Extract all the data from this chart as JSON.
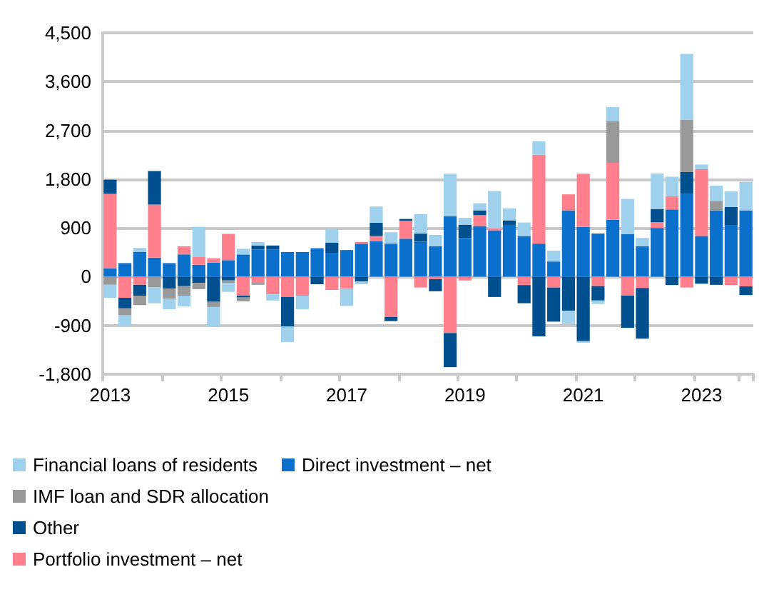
{
  "chart_data": {
    "type": "bar",
    "stacked": true,
    "categories": [
      "2013",
      null,
      null,
      null,
      null,
      null,
      null,
      null,
      "2015",
      null,
      null,
      null,
      null,
      null,
      null,
      null,
      "2017",
      null,
      null,
      null,
      null,
      null,
      null,
      null,
      "2019",
      null,
      null,
      null,
      null,
      null,
      null,
      null,
      "2021",
      null,
      null,
      null,
      null,
      null,
      null,
      null,
      "2023",
      null,
      null,
      null
    ],
    "series": [
      {
        "name": "Direct investment – net",
        "color": "#0a70cc",
        "values": [
          150,
          250,
          460,
          350,
          250,
          410,
          220,
          260,
          305,
          410,
          500,
          505,
          455,
          455,
          525,
          440,
          470,
          610,
          655,
          610,
          700,
          645,
          560,
          1120,
          715,
          935,
          855,
          955,
          750,
          610,
          280,
          1225,
          920,
          795,
          1050,
          785,
          560,
          900,
          1240,
          1530,
          750,
          1225,
          955,
          1225
        ]
      },
      {
        "name": "Portfolio investment – net",
        "color": "#ff808c",
        "values": [
          1380,
          -390,
          -150,
          980,
          null,
          150,
          150,
          80,
          485,
          -350,
          -115,
          -325,
          -375,
          -350,
          null,
          -245,
          -225,
          30,
          95,
          -745,
          330,
          -200,
          -45,
          -1040,
          -70,
          200,
          35,
          null,
          -155,
          1640,
          -200,
          295,
          980,
          -175,
          1050,
          -350,
          -210,
          105,
          245,
          -200,
          1235,
          null,
          -155,
          -180
        ]
      },
      {
        "name": "Other",
        "color": "#00508f",
        "values": [
          260,
          -195,
          -200,
          620,
          -220,
          -175,
          -115,
          -465,
          -70,
          -35,
          75,
          70,
          -545,
          null,
          -140,
          190,
          20,
          -90,
          245,
          -75,
          35,
          150,
          -225,
          -630,
          245,
          90,
          -375,
          85,
          -335,
          -1100,
          -630,
          -630,
          -1190,
          -265,
          null,
          -595,
          -935,
          245,
          -155,
          400,
          -130,
          -150,
          330,
          -160
        ]
      },
      {
        "name": "IMF loan and SDR allocation",
        "color": "#999999",
        "values": [
          -150,
          -130,
          -175,
          -200,
          -190,
          -175,
          -115,
          -95,
          -50,
          -70,
          -35,
          null,
          null,
          null,
          null,
          null,
          null,
          null,
          null,
          null,
          null,
          null,
          null,
          null,
          null,
          null,
          null,
          null,
          null,
          null,
          null,
          null,
          null,
          null,
          765,
          null,
          null,
          null,
          null,
          970,
          null,
          175,
          null,
          null
        ]
      },
      {
        "name": "Financial loans of residents",
        "color": "#9fd0ec",
        "values": [
          -240,
          -195,
          70,
          -290,
          -190,
          -200,
          550,
          -365,
          -160,
          105,
          65,
          -115,
          -285,
          -250,
          null,
          250,
          -315,
          -50,
          300,
          210,
          null,
          360,
          210,
          780,
          125,
          130,
          690,
          220,
          250,
          250,
          200,
          -245,
          -30,
          -65,
          265,
          650,
          155,
          655,
          360,
          1210,
          85,
          280,
          290,
          525
        ]
      }
    ],
    "ylim": [
      -1800,
      4500
    ],
    "yticks": [
      {
        "value": -1800,
        "label": "-1,800"
      },
      {
        "value": -900,
        "label": "-900"
      },
      {
        "value": 0,
        "label": "0"
      },
      {
        "value": 900,
        "label": "900"
      },
      {
        "value": 1800,
        "label": "1,800"
      },
      {
        "value": 2700,
        "label": "2,700"
      },
      {
        "value": 3600,
        "label": "3,600"
      },
      {
        "value": 4500,
        "label": "4,500"
      }
    ],
    "grid": "y",
    "legend": "bottom"
  }
}
